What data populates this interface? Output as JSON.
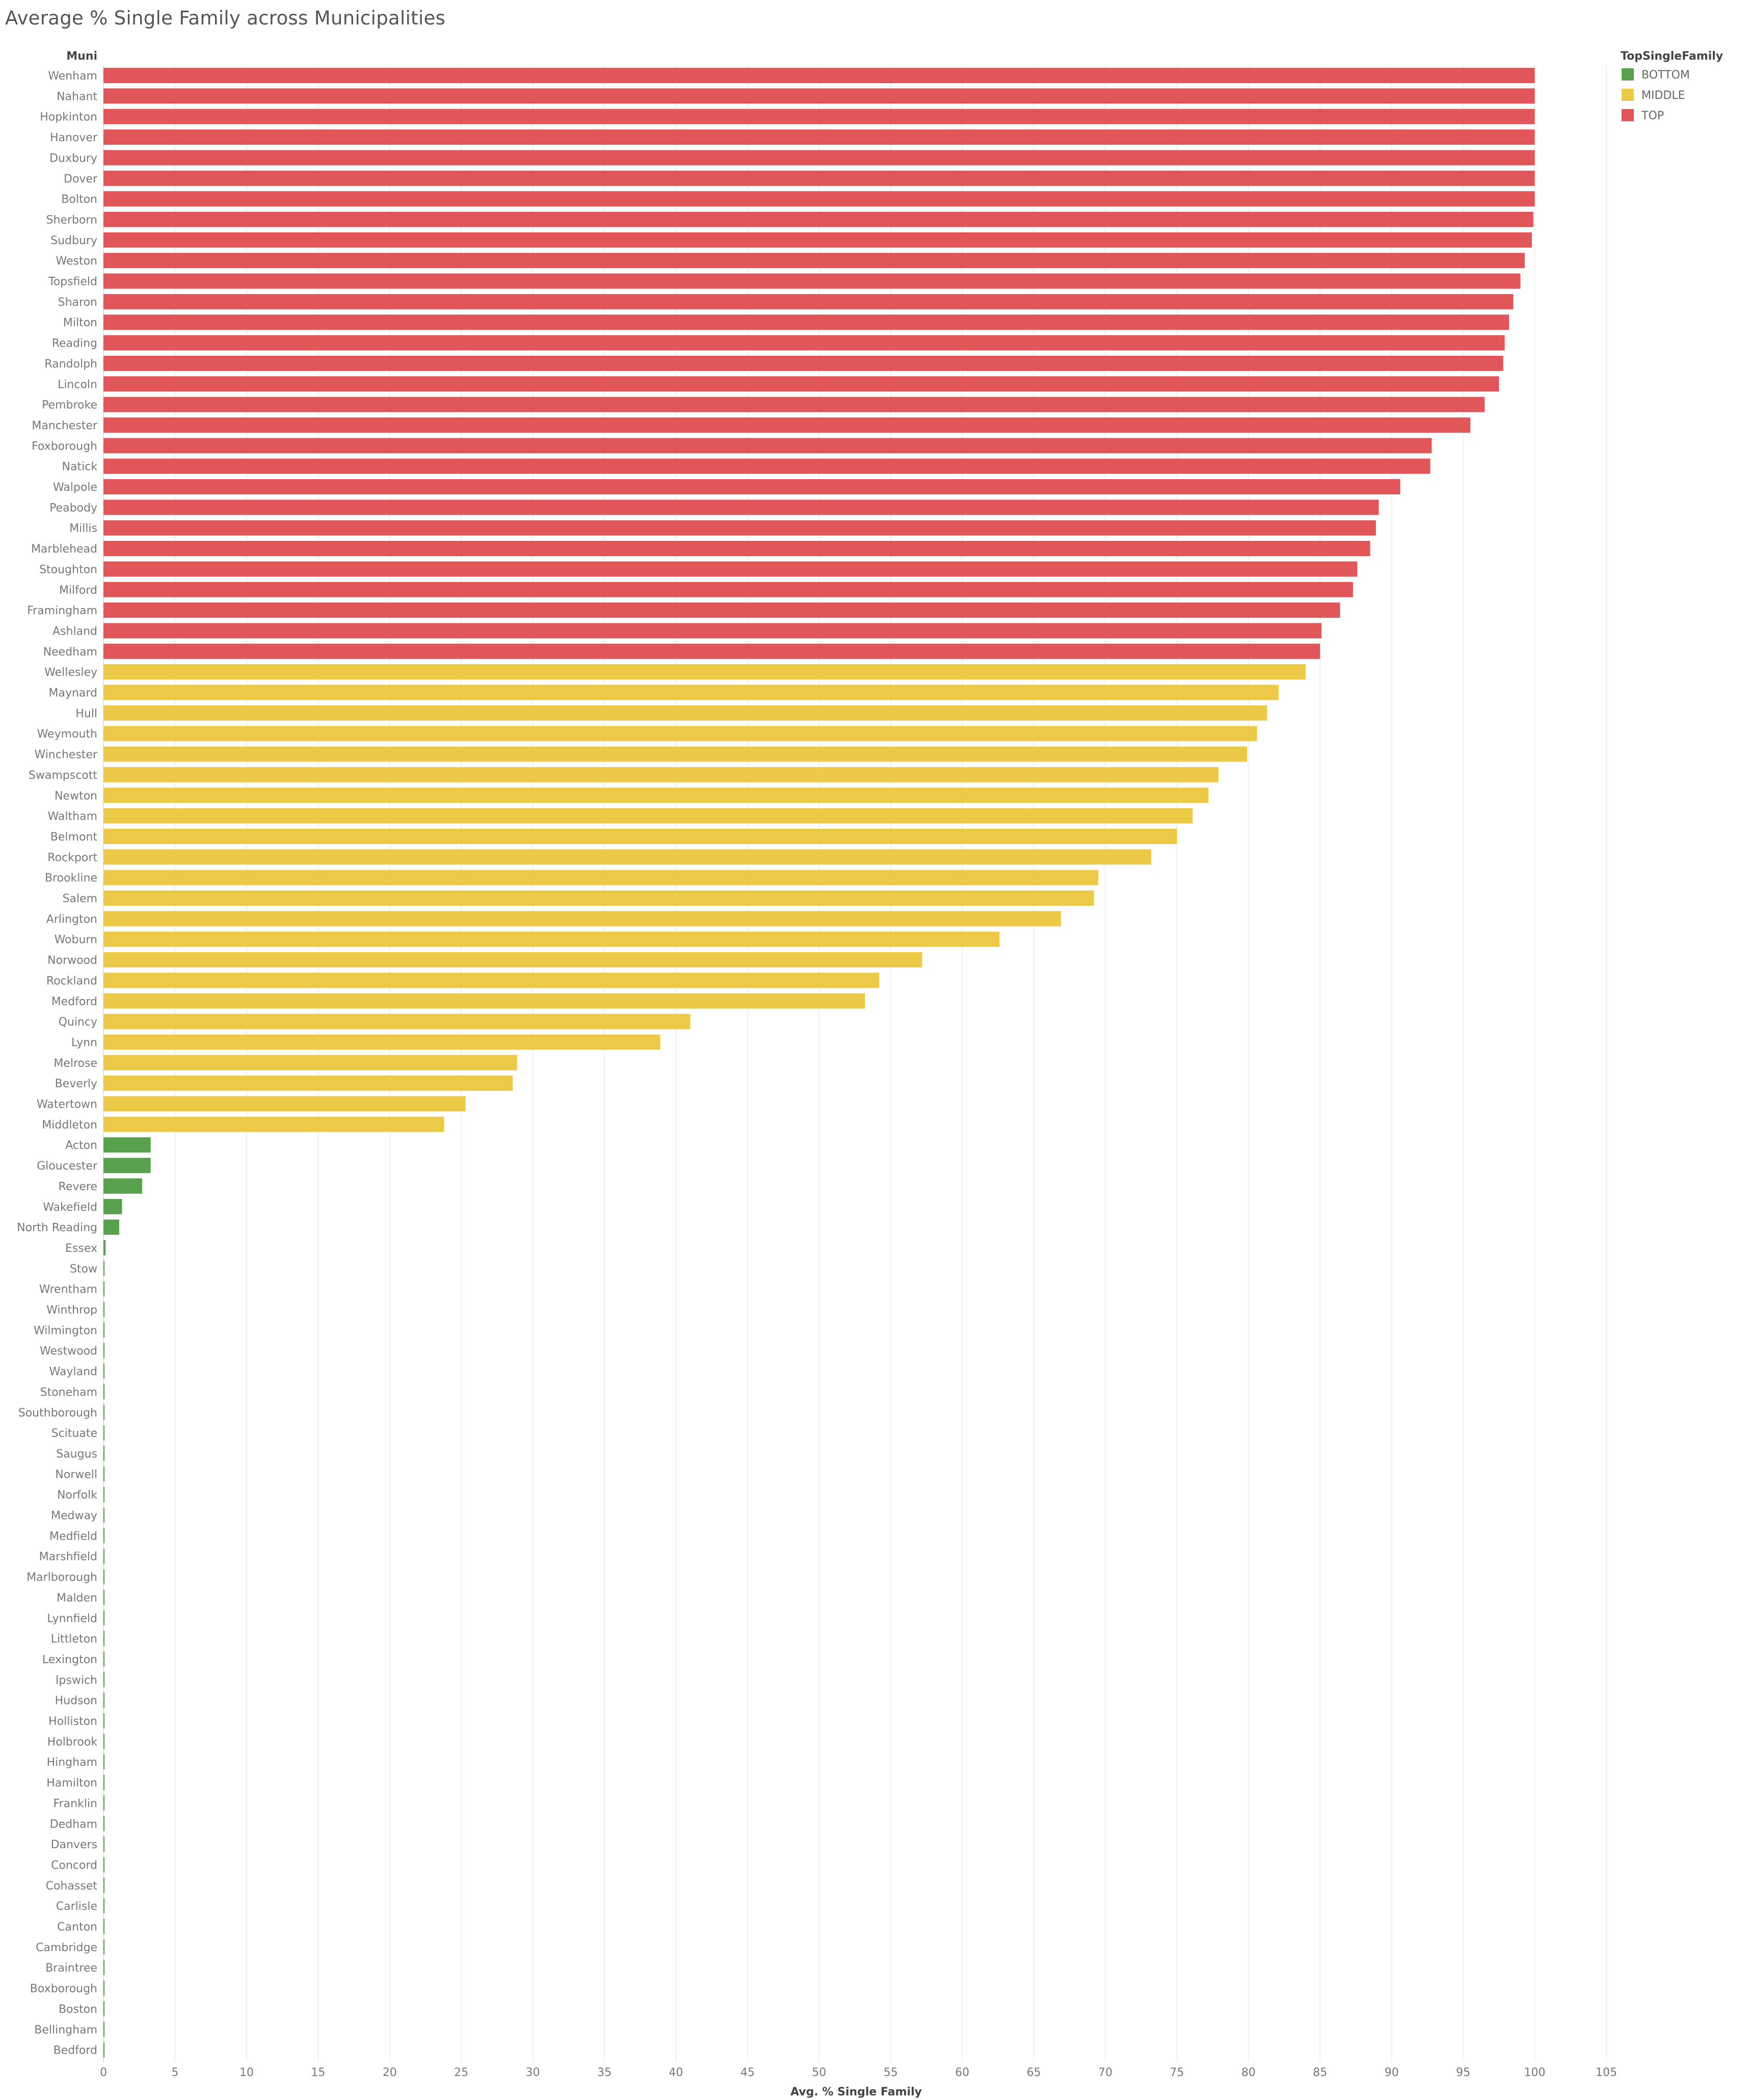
{
  "chart_data": {
    "type": "bar",
    "orientation": "horizontal",
    "title": "Average % Single Family across Municipalities",
    "ylabel": "Muni",
    "xlabel": "Avg. % Single Family",
    "xlim": [
      0,
      105
    ],
    "xticks": [
      0,
      5,
      10,
      15,
      20,
      25,
      30,
      35,
      40,
      45,
      50,
      55,
      60,
      65,
      70,
      75,
      80,
      85,
      90,
      95,
      100,
      105
    ],
    "grid": true,
    "legend": {
      "title": "TopSingleFamily",
      "position": "top-right",
      "items": [
        {
          "name": "BOTTOM",
          "color": "#59a14f"
        },
        {
          "name": "MIDDLE",
          "color": "#edc948"
        },
        {
          "name": "TOP",
          "color": "#e15759"
        }
      ]
    },
    "categories": [
      "Wenham",
      "Nahant",
      "Hopkinton",
      "Hanover",
      "Duxbury",
      "Dover",
      "Bolton",
      "Sherborn",
      "Sudbury",
      "Weston",
      "Topsfield",
      "Sharon",
      "Milton",
      "Reading",
      "Randolph",
      "Lincoln",
      "Pembroke",
      "Manchester",
      "Foxborough",
      "Natick",
      "Walpole",
      "Peabody",
      "Millis",
      "Marblehead",
      "Stoughton",
      "Milford",
      "Framingham",
      "Ashland",
      "Needham",
      "Wellesley",
      "Maynard",
      "Hull",
      "Weymouth",
      "Winchester",
      "Swampscott",
      "Newton",
      "Waltham",
      "Belmont",
      "Rockport",
      "Brookline",
      "Salem",
      "Arlington",
      "Woburn",
      "Norwood",
      "Rockland",
      "Medford",
      "Quincy",
      "Lynn",
      "Melrose",
      "Beverly",
      "Watertown",
      "Middleton",
      "Acton",
      "Gloucester",
      "Revere",
      "Wakefield",
      "North Reading",
      "Essex",
      "Stow",
      "Wrentham",
      "Winthrop",
      "Wilmington",
      "Westwood",
      "Wayland",
      "Stoneham",
      "Southborough",
      "Scituate",
      "Saugus",
      "Norwell",
      "Norfolk",
      "Medway",
      "Medfield",
      "Marshfield",
      "Marlborough",
      "Malden",
      "Lynnfield",
      "Littleton",
      "Lexington",
      "Ipswich",
      "Hudson",
      "Holliston",
      "Holbrook",
      "Hingham",
      "Hamilton",
      "Franklin",
      "Dedham",
      "Danvers",
      "Concord",
      "Cohasset",
      "Carlisle",
      "Canton",
      "Cambridge",
      "Braintree",
      "Boxborough",
      "Boston",
      "Bellingham",
      "Bedford"
    ],
    "values": [
      100,
      100,
      100,
      100,
      100,
      100,
      100,
      99.9,
      99.8,
      99.3,
      99.0,
      98.5,
      98.2,
      97.9,
      97.8,
      97.5,
      96.5,
      95.5,
      92.8,
      92.7,
      90.6,
      89.1,
      88.9,
      88.5,
      87.6,
      87.3,
      86.4,
      85.1,
      85.0,
      84.0,
      82.1,
      81.3,
      80.6,
      79.9,
      77.9,
      77.2,
      76.1,
      75.0,
      73.2,
      69.5,
      69.2,
      66.9,
      62.6,
      57.2,
      54.2,
      53.2,
      41.0,
      38.9,
      28.9,
      28.6,
      25.3,
      23.8,
      3.3,
      3.3,
      2.7,
      1.3,
      1.1,
      0.15,
      0.05,
      0.05,
      0.05,
      0.05,
      0.05,
      0.05,
      0.05,
      0.05,
      0.05,
      0.05,
      0.05,
      0.05,
      0.05,
      0.05,
      0.05,
      0.05,
      0.05,
      0.05,
      0.05,
      0.05,
      0.05,
      0.05,
      0.05,
      0.05,
      0.05,
      0.05,
      0.05,
      0.05,
      0.05,
      0.05,
      0.05,
      0.05,
      0.05,
      0.05,
      0.05,
      0.05,
      0.05,
      0.05,
      0.05
    ],
    "groups": [
      "TOP",
      "TOP",
      "TOP",
      "TOP",
      "TOP",
      "TOP",
      "TOP",
      "TOP",
      "TOP",
      "TOP",
      "TOP",
      "TOP",
      "TOP",
      "TOP",
      "TOP",
      "TOP",
      "TOP",
      "TOP",
      "TOP",
      "TOP",
      "TOP",
      "TOP",
      "TOP",
      "TOP",
      "TOP",
      "TOP",
      "TOP",
      "TOP",
      "TOP",
      "MIDDLE",
      "MIDDLE",
      "MIDDLE",
      "MIDDLE",
      "MIDDLE",
      "MIDDLE",
      "MIDDLE",
      "MIDDLE",
      "MIDDLE",
      "MIDDLE",
      "MIDDLE",
      "MIDDLE",
      "MIDDLE",
      "MIDDLE",
      "MIDDLE",
      "MIDDLE",
      "MIDDLE",
      "MIDDLE",
      "MIDDLE",
      "MIDDLE",
      "MIDDLE",
      "MIDDLE",
      "MIDDLE",
      "BOTTOM",
      "BOTTOM",
      "BOTTOM",
      "BOTTOM",
      "BOTTOM",
      "BOTTOM",
      "BOTTOM",
      "BOTTOM",
      "BOTTOM",
      "BOTTOM",
      "BOTTOM",
      "BOTTOM",
      "BOTTOM",
      "BOTTOM",
      "BOTTOM",
      "BOTTOM",
      "BOTTOM",
      "BOTTOM",
      "BOTTOM",
      "BOTTOM",
      "BOTTOM",
      "BOTTOM",
      "BOTTOM",
      "BOTTOM",
      "BOTTOM",
      "BOTTOM",
      "BOTTOM",
      "BOTTOM",
      "BOTTOM",
      "BOTTOM",
      "BOTTOM",
      "BOTTOM",
      "BOTTOM",
      "BOTTOM",
      "BOTTOM",
      "BOTTOM",
      "BOTTOM",
      "BOTTOM",
      "BOTTOM",
      "BOTTOM",
      "BOTTOM",
      "BOTTOM",
      "BOTTOM",
      "BOTTOM",
      "BOTTOM"
    ]
  }
}
